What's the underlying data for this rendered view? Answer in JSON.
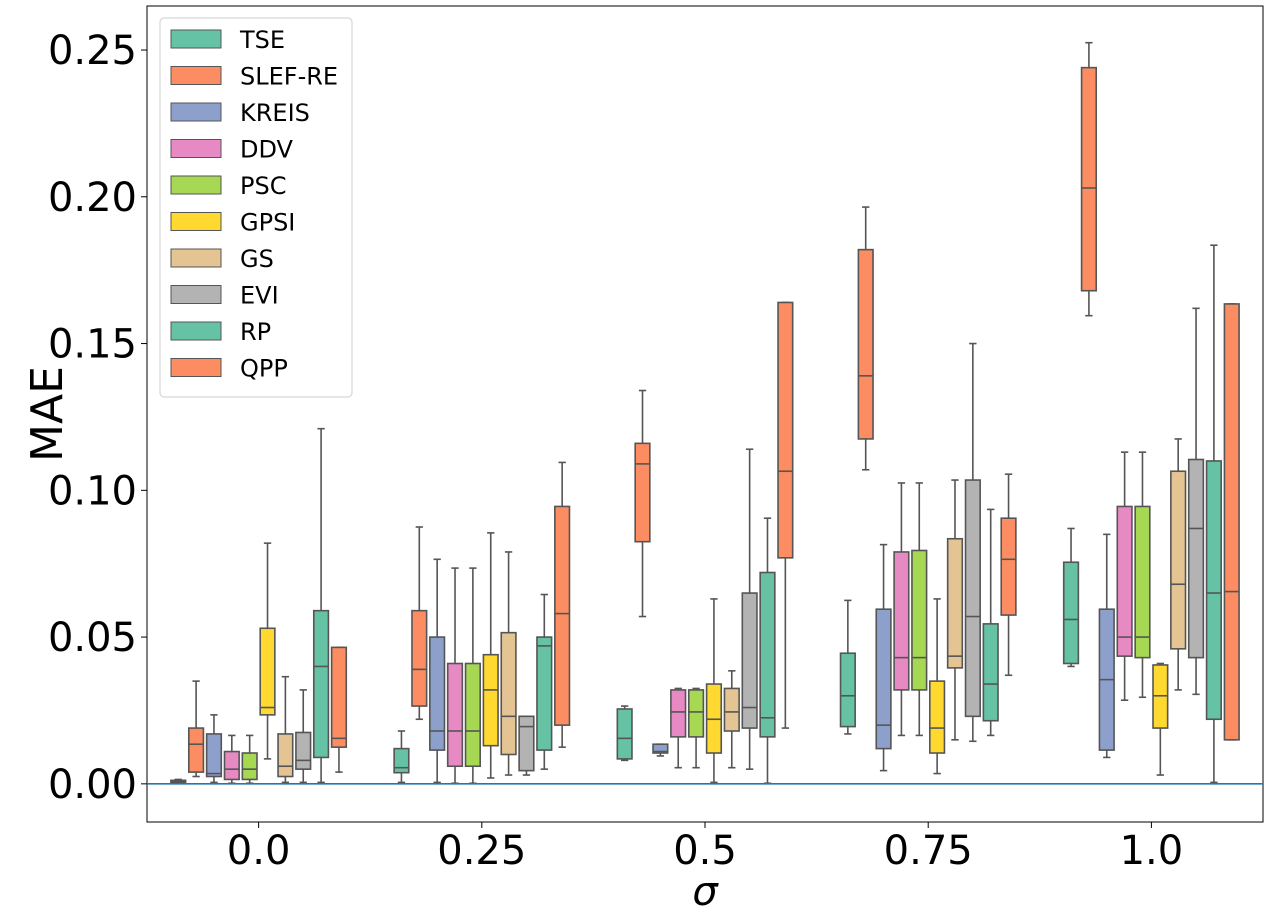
{
  "chart_data": {
    "type": "box",
    "title": "",
    "xlabel": "σ",
    "ylabel": "MAE",
    "categories": [
      "0.0",
      "0.25",
      "0.5",
      "0.75",
      "1.0"
    ],
    "ylim": [
      -0.013,
      0.265
    ],
    "yticks": [
      {
        "value": 0.0,
        "label": "0.00"
      },
      {
        "value": 0.05,
        "label": "0.05"
      },
      {
        "value": 0.1,
        "label": "0.10"
      },
      {
        "value": 0.15,
        "label": "0.15"
      },
      {
        "value": 0.2,
        "label": "0.20"
      },
      {
        "value": 0.25,
        "label": "0.25"
      }
    ],
    "reference_line": 0.0,
    "legend_position": "top-left",
    "series": [
      {
        "name": "TSE",
        "color": "#66c2a5",
        "boxes": [
          [
            0.0003,
            0.0005,
            0.0008,
            0.0012,
            0.0015
          ],
          [
            0.0005,
            0.0038,
            0.0055,
            0.012,
            0.018
          ],
          [
            0.008,
            0.0085,
            0.0155,
            0.0255,
            0.0265
          ],
          [
            0.017,
            0.0195,
            0.03,
            0.0445,
            0.0625
          ],
          [
            0.04,
            0.041,
            0.056,
            0.0755,
            0.087
          ]
        ]
      },
      {
        "name": "SLEF-RE",
        "color": "#fc8d62",
        "boxes": [
          [
            0.0025,
            0.004,
            0.0135,
            0.019,
            0.035
          ],
          [
            0.022,
            0.0265,
            0.039,
            0.059,
            0.0875
          ],
          [
            0.057,
            0.0825,
            0.109,
            0.116,
            0.134
          ],
          [
            0.107,
            0.1175,
            0.139,
            0.182,
            0.1965
          ],
          [
            0.1595,
            0.168,
            0.203,
            0.244,
            0.2525
          ]
        ]
      },
      {
        "name": "KREIS",
        "color": "#8da0cb",
        "boxes": [
          [
            0.0005,
            0.0025,
            0.0035,
            0.017,
            0.0235
          ],
          [
            0.0005,
            0.0115,
            0.018,
            0.05,
            0.0765
          ],
          [
            0.0095,
            0.0105,
            0.011,
            0.0135,
            0.0135
          ],
          [
            0.0045,
            0.012,
            0.02,
            0.0595,
            0.0815
          ],
          [
            0.009,
            0.0115,
            0.0355,
            0.0595,
            0.085
          ]
        ]
      },
      {
        "name": "DDV",
        "color": "#e78ac3",
        "boxes": [
          [
            0.0002,
            0.0015,
            0.005,
            0.011,
            0.0165
          ],
          [
            0.0002,
            0.006,
            0.018,
            0.041,
            0.0735
          ],
          [
            0.0055,
            0.016,
            0.0245,
            0.032,
            0.0325
          ],
          [
            0.0165,
            0.032,
            0.043,
            0.079,
            0.1025
          ],
          [
            0.0285,
            0.0435,
            0.05,
            0.0945,
            0.113
          ]
        ]
      },
      {
        "name": "PSC",
        "color": "#a6d854",
        "boxes": [
          [
            0.0002,
            0.0015,
            0.005,
            0.0105,
            0.0165
          ],
          [
            0.0002,
            0.006,
            0.018,
            0.041,
            0.0735
          ],
          [
            0.0055,
            0.016,
            0.0245,
            0.032,
            0.0325
          ],
          [
            0.0165,
            0.032,
            0.043,
            0.0795,
            0.1025
          ],
          [
            0.0295,
            0.043,
            0.05,
            0.0945,
            0.113
          ]
        ]
      },
      {
        "name": "GPSI",
        "color": "#ffd92f",
        "boxes": [
          [
            0.0085,
            0.0235,
            0.026,
            0.053,
            0.082
          ],
          [
            0.002,
            0.013,
            0.032,
            0.044,
            0.0855
          ],
          [
            0.0005,
            0.0105,
            0.022,
            0.034,
            0.063
          ],
          [
            0.0035,
            0.0105,
            0.019,
            0.035,
            0.063
          ],
          [
            0.003,
            0.019,
            0.03,
            0.0405,
            0.041
          ]
        ]
      },
      {
        "name": "GS",
        "color": "#e5c494",
        "boxes": [
          [
            0.0005,
            0.0025,
            0.006,
            0.017,
            0.0365
          ],
          [
            0.003,
            0.01,
            0.023,
            0.0515,
            0.079
          ],
          [
            0.0055,
            0.018,
            0.0245,
            0.0325,
            0.0385
          ],
          [
            0.015,
            0.0395,
            0.0435,
            0.0835,
            0.1035
          ],
          [
            0.032,
            0.046,
            0.068,
            0.1065,
            0.1175
          ]
        ]
      },
      {
        "name": "EVI",
        "color": "#b3b3b3",
        "boxes": [
          [
            0.0005,
            0.005,
            0.008,
            0.0175,
            0.032
          ],
          [
            0.003,
            0.0045,
            0.0195,
            0.023,
            0.023
          ],
          [
            0.005,
            0.019,
            0.026,
            0.065,
            0.114
          ],
          [
            0.0145,
            0.023,
            0.057,
            0.1035,
            0.15
          ],
          [
            0.0305,
            0.043,
            0.087,
            0.1105,
            0.162
          ]
        ]
      },
      {
        "name": "RP",
        "color": "#66c2a5",
        "boxes": [
          [
            0.0005,
            0.009,
            0.04,
            0.059,
            0.121
          ],
          [
            0.005,
            0.0115,
            0.047,
            0.05,
            0.0645
          ],
          [
            0.0002,
            0.016,
            0.0225,
            0.072,
            0.0905
          ],
          [
            0.0165,
            0.0215,
            0.034,
            0.0545,
            0.0935
          ],
          [
            0.0005,
            0.022,
            0.065,
            0.11,
            0.1835
          ]
        ]
      },
      {
        "name": "QPP",
        "color": "#fc8d62",
        "boxes": [
          [
            0.004,
            0.0125,
            0.0155,
            0.0465,
            0.0465
          ],
          [
            0.0125,
            0.02,
            0.058,
            0.0945,
            0.1095
          ],
          [
            0.019,
            0.077,
            0.1065,
            0.164,
            0.164
          ],
          [
            0.037,
            0.0575,
            0.0765,
            0.0905,
            0.1055
          ],
          [
            0.015,
            0.015,
            0.0655,
            0.1635,
            0.1635
          ]
        ]
      }
    ]
  }
}
